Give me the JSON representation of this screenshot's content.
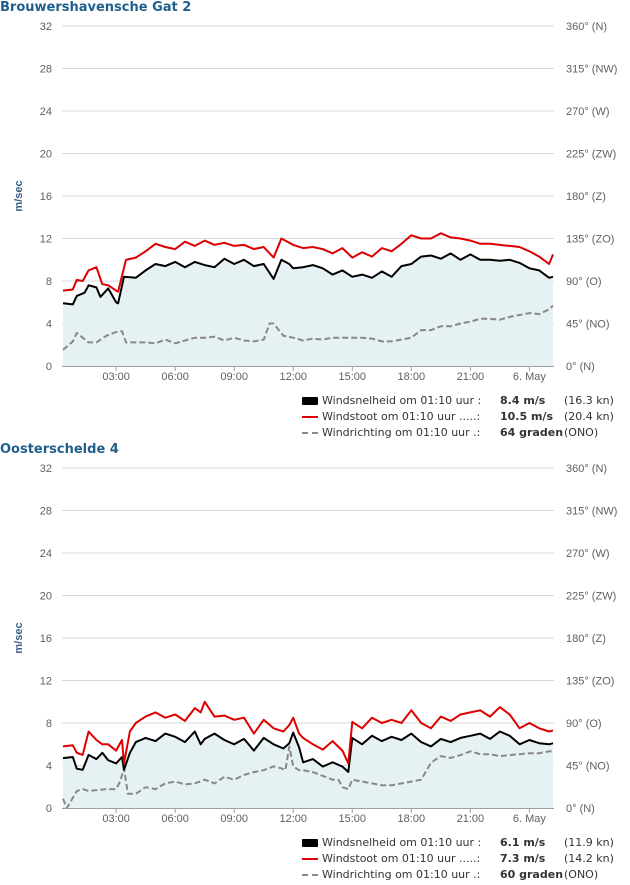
{
  "panels": [
    {
      "title": "Brouwershavensche Gat 2",
      "legend": [
        {
          "label": "Windsnelheid om 01:10 uur :",
          "value": "8.4 m/s",
          "extra": "(16.3 kn)",
          "color": "#000000",
          "style": "box"
        },
        {
          "label": "Windstoot om 01:10 uur .....:",
          "value": "10.5 m/s",
          "extra": "(20.4 kn)",
          "color": "#dd0000",
          "style": "line"
        },
        {
          "label": "Windrichting om 01:10 uur .:",
          "value": "64 graden",
          "extra": "(ONO)",
          "color": "#888888",
          "style": "dash"
        }
      ]
    },
    {
      "title": "Oosterschelde 4",
      "legend": [
        {
          "label": "Windsnelheid om 01:10 uur :",
          "value": "6.1 m/s",
          "extra": "(11.9 kn)",
          "color": "#000000",
          "style": "box"
        },
        {
          "label": "Windstoot om 01:10 uur .....:",
          "value": "7.3 m/s",
          "extra": "(14.2 kn)",
          "color": "#dd0000",
          "style": "line"
        },
        {
          "label": "Windrichting om 01:10 uur .:",
          "value": "60 graden",
          "extra": "(ONO)",
          "color": "#888888",
          "style": "dash"
        }
      ]
    }
  ],
  "chart_data": [
    {
      "type": "line",
      "title": "Brouwershavensche Gat 2",
      "ylabel": "m/sec",
      "ylim": [
        0,
        32
      ],
      "yticks": [
        "0",
        "4",
        "8",
        "12",
        "16",
        "20",
        "24",
        "28",
        "32"
      ],
      "y2ticks": [
        "0° (N)",
        "45° (NO)",
        "90° (O)",
        "135° (ZO)",
        "180° (Z)",
        "225° (ZW)",
        "270° (W)",
        "315° (NW)",
        "360° (N)"
      ],
      "y2lim": [
        0,
        360
      ],
      "xlim_hours": [
        0.25,
        25.25
      ],
      "xticks": [
        {
          "h": 3,
          "label": "03:00"
        },
        {
          "h": 6,
          "label": "06:00"
        },
        {
          "h": 9,
          "label": "09:00"
        },
        {
          "h": 12,
          "label": "12:00"
        },
        {
          "h": 15,
          "label": "15:00"
        },
        {
          "h": 18,
          "label": "18:00"
        },
        {
          "h": 21,
          "label": "21:00"
        },
        {
          "h": 24,
          "label": "6. May"
        }
      ],
      "grid": true,
      "series": [
        {
          "name": "Windsnelheid",
          "color": "#000000",
          "fill": true,
          "axis": "left",
          "x": [
            0.3,
            0.8,
            1.0,
            1.4,
            1.6,
            2.0,
            2.2,
            2.6,
            3.0,
            3.1,
            3.4,
            4.0,
            4.5,
            5.0,
            5.5,
            6.0,
            6.5,
            7.0,
            7.5,
            8.0,
            8.5,
            9.0,
            9.5,
            10.0,
            10.5,
            11.0,
            11.4,
            11.8,
            12.0,
            12.5,
            13.0,
            13.5,
            14.0,
            14.5,
            15.0,
            15.5,
            16.0,
            16.5,
            17.0,
            17.5,
            18.0,
            18.5,
            19.0,
            19.5,
            20.0,
            20.5,
            21.0,
            21.5,
            22.0,
            22.5,
            23.0,
            23.5,
            24.0,
            24.5,
            25.0,
            25.2
          ],
          "y": [
            5.9,
            5.8,
            6.6,
            6.9,
            7.6,
            7.4,
            6.5,
            7.3,
            6.0,
            5.9,
            8.4,
            8.3,
            9.0,
            9.6,
            9.4,
            9.8,
            9.3,
            9.8,
            9.5,
            9.3,
            10.1,
            9.6,
            10.0,
            9.4,
            9.6,
            8.2,
            10.0,
            9.6,
            9.2,
            9.3,
            9.5,
            9.2,
            8.6,
            9.0,
            8.4,
            8.6,
            8.3,
            8.9,
            8.4,
            9.4,
            9.6,
            10.3,
            10.4,
            10.1,
            10.6,
            10.0,
            10.5,
            10.0,
            10.0,
            9.9,
            10.0,
            9.7,
            9.2,
            9.0,
            8.3,
            8.4
          ]
        },
        {
          "name": "Windstoot",
          "color": "#dd0000",
          "fill": false,
          "axis": "left",
          "x": [
            0.3,
            0.8,
            1.0,
            1.3,
            1.6,
            2.0,
            2.3,
            2.6,
            3.0,
            3.1,
            3.5,
            4.0,
            4.5,
            5.0,
            5.5,
            6.0,
            6.5,
            7.0,
            7.5,
            8.0,
            8.5,
            9.0,
            9.5,
            10.0,
            10.5,
            11.0,
            11.4,
            11.8,
            12.0,
            12.5,
            13.0,
            13.5,
            14.0,
            14.5,
            15.0,
            15.5,
            16.0,
            16.5,
            17.0,
            17.5,
            18.0,
            18.5,
            19.0,
            19.5,
            20.0,
            20.5,
            21.0,
            21.5,
            22.0,
            22.5,
            23.0,
            23.5,
            24.0,
            24.5,
            25.0,
            25.2
          ],
          "y": [
            7.1,
            7.2,
            8.1,
            8.0,
            9.0,
            9.3,
            7.7,
            7.6,
            7.1,
            7.0,
            10.0,
            10.2,
            10.8,
            11.5,
            11.2,
            11.0,
            11.7,
            11.3,
            11.8,
            11.4,
            11.6,
            11.3,
            11.4,
            11.0,
            11.2,
            10.2,
            12.0,
            11.6,
            11.4,
            11.1,
            11.2,
            11.0,
            10.6,
            11.1,
            10.2,
            10.7,
            10.3,
            11.1,
            10.8,
            11.5,
            12.3,
            12.0,
            12.0,
            12.5,
            12.1,
            12.0,
            11.8,
            11.5,
            11.5,
            11.4,
            11.3,
            11.2,
            10.8,
            10.3,
            9.6,
            10.5
          ]
        },
        {
          "name": "Windrichting",
          "color": "#888888",
          "fill": false,
          "dash": true,
          "axis": "right",
          "x": [
            0.3,
            0.8,
            1.0,
            1.3,
            1.6,
            2.0,
            2.5,
            3.0,
            3.3,
            3.5,
            4.0,
            4.5,
            5.0,
            5.5,
            6.0,
            6.5,
            7.0,
            7.5,
            8.0,
            8.5,
            9.0,
            9.5,
            10.0,
            10.5,
            10.8,
            11.0,
            11.5,
            12.0,
            12.5,
            13.0,
            13.5,
            14.0,
            14.5,
            15.0,
            15.5,
            16.0,
            16.5,
            17.0,
            17.5,
            18.0,
            18.5,
            19.0,
            19.5,
            20.0,
            20.5,
            21.0,
            21.5,
            22.0,
            22.5,
            23.0,
            23.5,
            24.0,
            24.5,
            25.0,
            25.2
          ],
          "y": [
            17,
            26,
            35,
            30,
            25,
            25,
            32,
            36,
            37,
            25,
            25,
            25,
            24,
            28,
            24,
            27,
            30,
            30,
            31,
            27,
            30,
            27,
            26,
            28,
            45,
            45,
            32,
            30,
            27,
            29,
            28,
            30,
            30,
            30,
            30,
            29,
            26,
            26,
            28,
            30,
            38,
            38,
            42,
            42,
            45,
            47,
            50,
            50,
            49,
            52,
            54,
            56,
            55,
            60,
            64
          ]
        }
      ]
    },
    {
      "type": "line",
      "title": "Oosterschelde 4",
      "ylabel": "m/sec",
      "ylim": [
        0,
        32
      ],
      "yticks": [
        "0",
        "4",
        "8",
        "12",
        "16",
        "20",
        "24",
        "28",
        "32"
      ],
      "y2ticks": [
        "0° (N)",
        "45° (NO)",
        "90° (O)",
        "135° (ZO)",
        "180° (Z)",
        "225° (ZW)",
        "270° (W)",
        "315° (NW)",
        "360° (N)"
      ],
      "y2lim": [
        0,
        360
      ],
      "xlim_hours": [
        0.25,
        25.25
      ],
      "xticks": [
        {
          "h": 3,
          "label": "03:00"
        },
        {
          "h": 6,
          "label": "06:00"
        },
        {
          "h": 9,
          "label": "09:00"
        },
        {
          "h": 12,
          "label": "12:00"
        },
        {
          "h": 15,
          "label": "15:00"
        },
        {
          "h": 18,
          "label": "18:00"
        },
        {
          "h": 21,
          "label": "21:00"
        },
        {
          "h": 24,
          "label": "6. May"
        }
      ],
      "grid": true,
      "series": [
        {
          "name": "Windsnelheid",
          "color": "#000000",
          "fill": true,
          "axis": "left",
          "x": [
            0.3,
            0.8,
            1.0,
            1.3,
            1.6,
            2.0,
            2.3,
            2.6,
            3.0,
            3.3,
            3.4,
            3.7,
            4.0,
            4.5,
            5.0,
            5.5,
            6.0,
            6.5,
            7.0,
            7.3,
            7.5,
            8.0,
            8.5,
            9.0,
            9.5,
            10.0,
            10.5,
            11.0,
            11.5,
            11.8,
            12.0,
            12.3,
            12.5,
            13.0,
            13.5,
            14.0,
            14.5,
            14.8,
            15.0,
            15.5,
            16.0,
            16.5,
            17.0,
            17.5,
            18.0,
            18.5,
            19.0,
            19.5,
            20.0,
            20.5,
            21.0,
            21.5,
            22.0,
            22.5,
            23.0,
            23.5,
            24.0,
            24.5,
            25.0,
            25.2
          ],
          "y": [
            4.7,
            4.8,
            3.7,
            3.6,
            5.0,
            4.6,
            5.2,
            4.5,
            4.2,
            4.8,
            3.6,
            5.2,
            6.2,
            6.6,
            6.3,
            7.0,
            6.7,
            6.2,
            7.2,
            6.0,
            6.5,
            7.0,
            6.4,
            6.0,
            6.5,
            5.4,
            6.6,
            6.0,
            5.6,
            6.1,
            7.1,
            5.7,
            4.3,
            4.6,
            3.9,
            4.3,
            3.9,
            3.4,
            6.6,
            6.0,
            6.8,
            6.3,
            6.7,
            6.4,
            7.0,
            6.2,
            5.8,
            6.5,
            6.2,
            6.6,
            6.8,
            7.0,
            6.5,
            7.2,
            6.8,
            6.0,
            6.4,
            6.1,
            6.0,
            6.1
          ]
        },
        {
          "name": "Windstoot",
          "color": "#dd0000",
          "fill": false,
          "axis": "left",
          "x": [
            0.3,
            0.8,
            1.0,
            1.3,
            1.6,
            2.0,
            2.3,
            2.6,
            3.0,
            3.3,
            3.4,
            3.7,
            4.0,
            4.5,
            5.0,
            5.5,
            6.0,
            6.5,
            7.0,
            7.3,
            7.5,
            8.0,
            8.5,
            9.0,
            9.5,
            10.0,
            10.5,
            11.0,
            11.5,
            11.8,
            12.0,
            12.3,
            12.5,
            13.0,
            13.5,
            14.0,
            14.5,
            14.8,
            15.0,
            15.5,
            16.0,
            16.5,
            17.0,
            17.5,
            18.0,
            18.5,
            19.0,
            19.5,
            20.0,
            20.5,
            21.0,
            21.5,
            22.0,
            22.5,
            23.0,
            23.5,
            24.0,
            24.5,
            25.0,
            25.2
          ],
          "y": [
            5.8,
            5.9,
            5.2,
            5.0,
            7.2,
            6.4,
            6.0,
            6.0,
            5.4,
            6.4,
            4.2,
            7.2,
            8.0,
            8.6,
            9.0,
            8.5,
            8.8,
            8.2,
            9.4,
            9.0,
            10.0,
            8.6,
            8.7,
            8.3,
            8.5,
            7.0,
            8.3,
            7.5,
            7.2,
            7.8,
            8.5,
            7.0,
            6.6,
            6.0,
            5.5,
            6.3,
            5.4,
            4.2,
            8.1,
            7.5,
            8.5,
            8.0,
            8.3,
            8.0,
            9.2,
            8.0,
            7.5,
            8.6,
            8.2,
            8.8,
            9.0,
            9.2,
            8.6,
            9.5,
            8.8,
            7.5,
            8.0,
            7.5,
            7.2,
            7.3
          ]
        },
        {
          "name": "Windrichting",
          "color": "#888888",
          "fill": false,
          "dash": true,
          "axis": "right",
          "x": [
            0.3,
            0.5,
            1.0,
            1.3,
            1.6,
            2.0,
            2.5,
            3.0,
            3.2,
            3.4,
            3.6,
            4.0,
            4.5,
            5.0,
            5.5,
            6.0,
            6.5,
            7.0,
            7.5,
            8.0,
            8.5,
            9.0,
            9.5,
            10.0,
            10.5,
            11.0,
            11.4,
            11.6,
            11.8,
            12.0,
            12.3,
            12.5,
            13.0,
            13.5,
            14.0,
            14.3,
            14.5,
            14.8,
            15.0,
            15.5,
            16.0,
            16.5,
            17.0,
            17.5,
            18.0,
            18.5,
            19.0,
            19.5,
            20.0,
            20.5,
            21.0,
            21.5,
            22.0,
            22.5,
            23.0,
            23.5,
            24.0,
            24.5,
            25.0,
            25.2
          ],
          "y": [
            10,
            0,
            18,
            20,
            18,
            19,
            20,
            20,
            28,
            42,
            15,
            15,
            22,
            20,
            26,
            28,
            25,
            26,
            30,
            26,
            33,
            30,
            35,
            38,
            40,
            44,
            42,
            40,
            65,
            44,
            40,
            40,
            38,
            34,
            30,
            30,
            22,
            20,
            30,
            28,
            26,
            24,
            24,
            26,
            28,
            30,
            48,
            55,
            53,
            56,
            60,
            57,
            57,
            55,
            56,
            57,
            58,
            58,
            60,
            60
          ]
        }
      ]
    }
  ]
}
